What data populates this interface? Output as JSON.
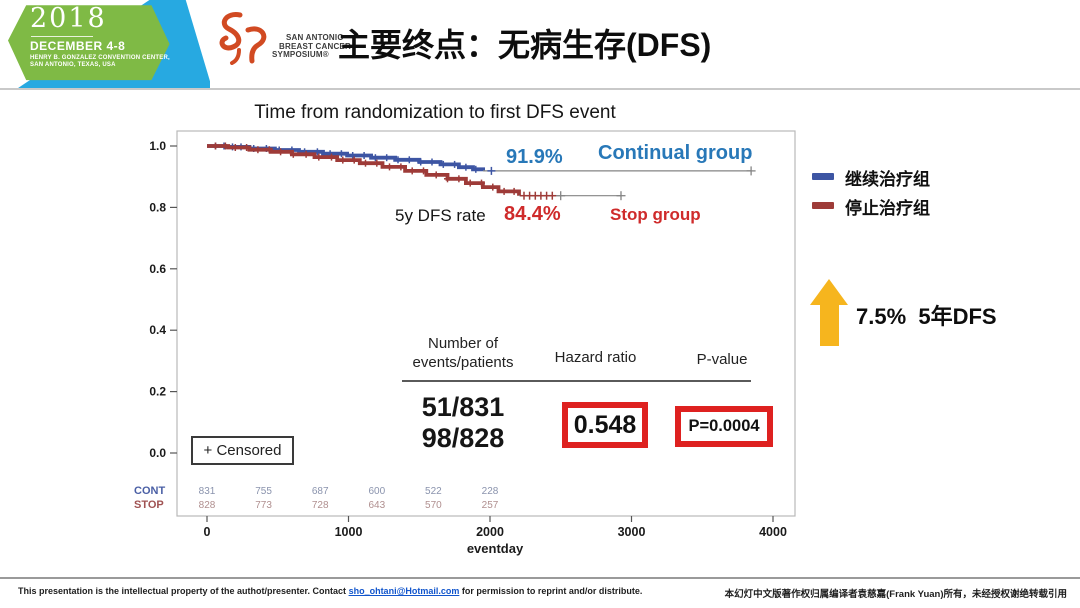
{
  "header": {
    "badge": {
      "year": "2018",
      "dates": "DECEMBER 4-8",
      "venue1": "HENRY B. GONZALEZ CONVENTION CENTER,",
      "venue2": "SAN ANTONIO, TEXAS, USA"
    },
    "sabcs": {
      "line1": "SAN ANTONIO",
      "line2": "BREAST CANCER",
      "line3": "SYMPOSIUM®"
    },
    "title": "主要终点：无病生存(DFS)"
  },
  "chart_data": {
    "type": "line",
    "subtype": "kaplan-meier",
    "title": "Time from randomization to first DFS event",
    "xlabel": "eventday",
    "xlim": [
      0,
      4160
    ],
    "ylim": [
      0.0,
      1.0
    ],
    "x_ticks": [
      0,
      1000,
      2000,
      3000,
      4000
    ],
    "y_ticks": [
      1.0,
      0.8,
      0.6,
      0.4,
      0.2,
      0.0
    ],
    "grid": false,
    "legend_position": "right-outside",
    "rate_caption": "5y DFS rate",
    "censored_label": "+ Censored",
    "series": [
      {
        "name": "Continual group",
        "color": "#3d55a3",
        "label_color": "#2878b8",
        "rate_label": "91.9%",
        "five_year_dfs": 0.919,
        "steps": [
          [
            0,
            1.0
          ],
          [
            130,
            0.997
          ],
          [
            300,
            0.992
          ],
          [
            480,
            0.987
          ],
          [
            650,
            0.981
          ],
          [
            820,
            0.975
          ],
          [
            990,
            0.969
          ],
          [
            1160,
            0.962
          ],
          [
            1330,
            0.955
          ],
          [
            1500,
            0.948
          ],
          [
            1650,
            0.94
          ],
          [
            1780,
            0.931
          ],
          [
            1880,
            0.924
          ],
          [
            1951,
            0.919
          ]
        ],
        "thick_end": 1951,
        "tail_end": 3845,
        "censors": [
          60,
          120,
          180,
          240,
          330,
          420,
          510,
          600,
          690,
          780,
          870,
          950,
          1030,
          1110,
          1190,
          1270,
          1350,
          1430,
          1510,
          1590,
          1670,
          1750,
          1830,
          1900
        ],
        "cluster_censors": [
          2010
        ],
        "tail_censors": [
          3845
        ]
      },
      {
        "name": "Stop group",
        "color": "#9e3b38",
        "label_color": "#cf2b2b",
        "rate_label": "84.4%",
        "five_year_dfs": 0.844,
        "steps": [
          [
            0,
            1.0
          ],
          [
            150,
            0.995
          ],
          [
            300,
            0.988
          ],
          [
            450,
            0.981
          ],
          [
            600,
            0.973
          ],
          [
            760,
            0.964
          ],
          [
            920,
            0.954
          ],
          [
            1080,
            0.944
          ],
          [
            1240,
            0.932
          ],
          [
            1400,
            0.919
          ],
          [
            1550,
            0.906
          ],
          [
            1700,
            0.893
          ],
          [
            1830,
            0.879
          ],
          [
            1950,
            0.866
          ],
          [
            2060,
            0.852
          ],
          [
            2205,
            0.838
          ]
        ],
        "thick_end": 2205,
        "tail_end": 2926,
        "censors": [
          60,
          130,
          200,
          280,
          360,
          440,
          520,
          610,
          700,
          790,
          880,
          960,
          1040,
          1120,
          1200,
          1290,
          1370,
          1450,
          1530,
          1620,
          1700,
          1780,
          1860,
          1940,
          2020,
          2100,
          2170
        ],
        "cluster_censors": [
          2240,
          2280,
          2320,
          2360,
          2400,
          2440
        ],
        "tail_censors": [
          2500,
          2926
        ]
      }
    ],
    "at_risk": {
      "row_labels": [
        "CONT",
        "STOP"
      ],
      "row_colors": [
        "#4a5fa5",
        "#a05252"
      ],
      "value_colors": [
        "#8a93ad",
        "#b08f8f"
      ],
      "days": [
        0,
        400,
        800,
        1200,
        1600,
        2000
      ],
      "values": [
        [
          831,
          755,
          687,
          600,
          522,
          228
        ],
        [
          828,
          773,
          728,
          643,
          570,
          257
        ]
      ]
    },
    "stats_table": {
      "col1_header_line1": "Number of",
      "col1_header_line2": "events/patients",
      "col2_header": "Hazard ratio",
      "col3_header": "P-value",
      "events_continual": "51/831",
      "events_stop": "98/828",
      "hazard_ratio": "0.548",
      "p_value": "P=0.0004",
      "highlight_color": "#de2120"
    }
  },
  "legend": {
    "items": [
      {
        "label": "继续治疗组",
        "color": "#3d55a3"
      },
      {
        "label": "停止治疗组",
        "color": "#9e3b38"
      }
    ]
  },
  "annotation": {
    "text": "7.5%  5年DFS",
    "arrow_color": "#f6b51e"
  },
  "footer": {
    "left_pre": "This presentation is the intellectual property of the authot/presenter. Contact ",
    "link": "sho_ohtani@Hotmail.com",
    "left_post": " for permission to reprint and/or distribute.",
    "right": "本幻灯中文版著作权归属编译者袁慈嘉(Frank Yuan)所有，未经授权谢绝转载引用"
  }
}
